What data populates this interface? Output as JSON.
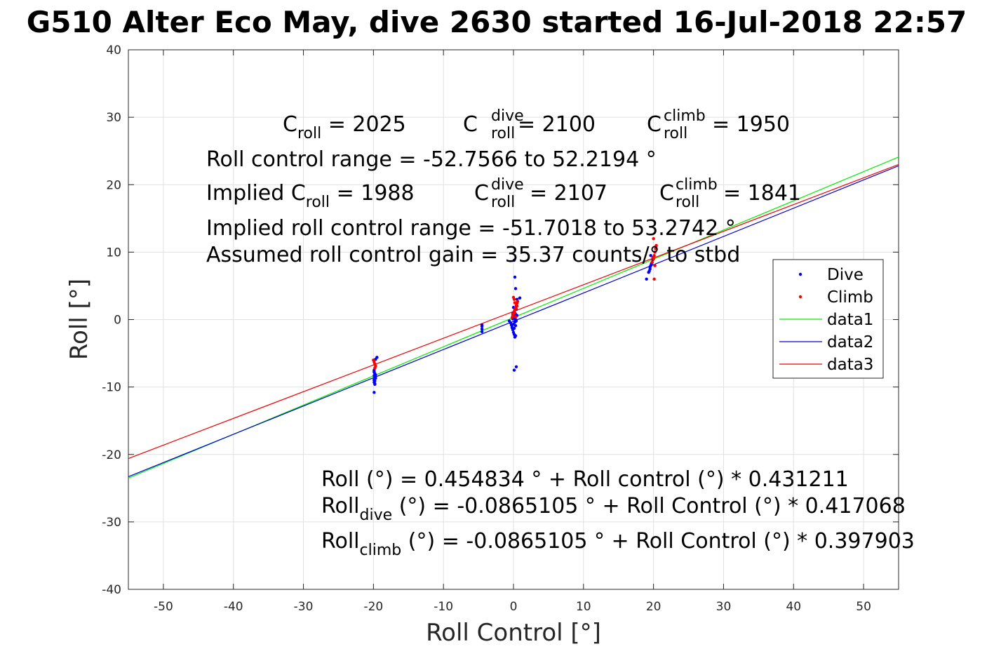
{
  "chart_data": {
    "type": "scatter",
    "title": "G510 Alter Eco May, dive 2630 started 16-Jul-2018 22:57",
    "xlabel": "Roll Control [°]",
    "ylabel": "Roll [°]",
    "xlim": [
      -55,
      55
    ],
    "ylim": [
      -40,
      40
    ],
    "xticks": [
      "-50",
      "-40",
      "-30",
      "-20",
      "-10",
      "0",
      "10",
      "20",
      "30",
      "40",
      "50"
    ],
    "yticks": [
      "40",
      "30",
      "20",
      "10",
      "0",
      "-10",
      "-20",
      "-30",
      "-40"
    ],
    "grid": true,
    "legend_position": "right",
    "series": [
      {
        "name": "Dive",
        "kind": "points",
        "color": "#0000ff",
        "x": [
          -19.9,
          -19.9,
          -19.8,
          -19.9,
          -19.8,
          -19.7,
          -19.9,
          -19.8,
          -19.9,
          -19.8,
          -19.7,
          -19.9,
          -19.8,
          -19.9,
          -19.8,
          -19.9,
          -19.5,
          -19.7,
          -4.5,
          -4.5,
          -4.5,
          -4.5,
          -0.6,
          -0.4,
          -0.3,
          -0.2,
          -0.1,
          0,
          0.1,
          0.2,
          0.3,
          0.1,
          0,
          -0.1,
          0.2,
          0.3,
          0.4,
          0.1,
          -0.2,
          0,
          0.3,
          0.4,
          0.5,
          0.1,
          0.2,
          0.3,
          0.9,
          0.2,
          0.3,
          0.1,
          0.2,
          0.5,
          0.1,
          0,
          -0.1,
          0.4,
          19.0,
          19.3,
          19.5,
          19.6,
          19.8,
          19.4,
          19.5,
          19.7,
          19.9,
          19.6
        ],
        "y": [
          -7.5,
          -7.8,
          -8.0,
          -8.3,
          -8.5,
          -8.7,
          -8.9,
          -9.1,
          -9.3,
          -9.5,
          -8.2,
          -7.7,
          -8.6,
          -9.0,
          -9.6,
          -10.8,
          -5.6,
          -5.9,
          -1.0,
          -1.4,
          -1.8,
          -0.8,
          -0.2,
          -0.5,
          -0.8,
          -1.1,
          -1.5,
          -1.9,
          -2.2,
          -2.6,
          -2.4,
          0.2,
          0.5,
          0.1,
          -0.3,
          0.0,
          -7.0,
          -7.5,
          -1.2,
          -0.7,
          0.8,
          1.5,
          3.0,
          8.8,
          6.3,
          4.6,
          3.2,
          0.3,
          -0.9,
          -1.3,
          -0.4,
          0.6,
          1.1,
          1.8,
          0.9,
          -0.2,
          6.0,
          7.0,
          7.5,
          8.0,
          8.5,
          7.2,
          7.8,
          8.3,
          8.9,
          9.5
        ]
      },
      {
        "name": "Climb",
        "kind": "points",
        "color": "#ff0000",
        "x": [
          -20.0,
          -19.9,
          -19.8,
          -19.7,
          -19.8,
          -0.2,
          -0.1,
          0,
          0.1,
          0.2,
          0.3,
          0.4,
          0.5,
          0.6,
          0.1,
          0,
          0.2,
          0.3,
          0.4,
          0.5,
          -0.1,
          0.2,
          19.8,
          20.0,
          20.1,
          20.2,
          20.3,
          20.4,
          20.0,
          20.1,
          20.2,
          19.9,
          20.3
        ],
        "y": [
          -6.0,
          -6.3,
          -6.6,
          -6.9,
          -7.2,
          0.3,
          0.6,
          0.9,
          1.2,
          1.5,
          1.8,
          2.1,
          2.4,
          2.7,
          3.0,
          3.3,
          1.0,
          0.4,
          1.6,
          2.0,
          0.8,
          2.5,
          8.5,
          9.0,
          9.5,
          10.0,
          10.5,
          11.0,
          12.0,
          6.0,
          8.0,
          9.2,
          10.8
        ]
      },
      {
        "name": "data1",
        "kind": "line",
        "color": "#00ee00",
        "x": [
          -55,
          55
        ],
        "y": [
          -23.5,
          24.1
        ]
      },
      {
        "name": "data2",
        "kind": "line",
        "color": "#0000cc",
        "x": [
          -55,
          55
        ],
        "y": [
          -23.3,
          22.8
        ]
      },
      {
        "name": "data3",
        "kind": "line",
        "color": "#ee0000",
        "x": [
          -55,
          55
        ],
        "y": [
          -20.6,
          23.0
        ]
      }
    ],
    "annotations": {
      "c_roll": {
        "base": "C",
        "sub": "roll",
        "value": " = 2025"
      },
      "c_roll_dive": {
        "base": "C",
        "sup": "dive",
        "sub": "roll",
        "value": " = 2100"
      },
      "c_roll_climb": {
        "base": "C",
        "sup": "climb",
        "sub": "roll",
        "value": " = 1950"
      },
      "roll_control_range": "Roll control range = -52.7566 to 52.2194 °",
      "implied_c_roll": {
        "prefix": "Implied C",
        "sub": "roll",
        "value": " = 1988"
      },
      "implied_c_roll_dive": {
        "base": "C",
        "sup": "dive",
        "sub": "roll",
        "value": " = 2107"
      },
      "implied_c_roll_climb": {
        "base": "C",
        "sup": "climb",
        "sub": "roll",
        "value": " = 1841"
      },
      "implied_range": "Implied roll control range = -51.7018 to 53.2742 °",
      "assumed_gain": "Assumed roll control gain = 35.37 counts/° to stbd",
      "fit_all": "Roll (°) = 0.454834 ° + Roll control (°) * 0.431211",
      "fit_dive": {
        "base": "Roll",
        "sub": "dive",
        "rest": " (°) = -0.0865105 ° + Roll Control (°) * 0.417068"
      },
      "fit_climb": {
        "base": "Roll",
        "sub": "climb",
        "rest": " (°) = -0.0865105 ° + Roll Control (°) * 0.397903"
      }
    }
  }
}
